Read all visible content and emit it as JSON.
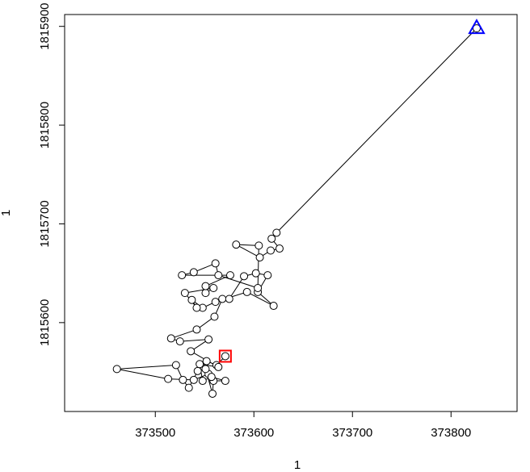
{
  "chart_data": {
    "type": "line",
    "xlabel": "1",
    "ylabel": "1",
    "x": [
      373571,
      373562,
      373552,
      373554,
      373539,
      373513,
      373461,
      373521,
      373528,
      373534,
      373543,
      373551,
      373558,
      373559,
      373571,
      373557,
      373548,
      373545,
      373564,
      373536,
      373554,
      373525,
      373516,
      373542,
      373560,
      373568,
      373575,
      373590,
      373602,
      373614,
      373604,
      373620,
      373593,
      373561,
      373548,
      373537,
      373542,
      373530,
      373559,
      373551,
      373551,
      373576,
      373527,
      373539,
      373561,
      373564,
      373604,
      373605,
      373582,
      373606,
      373617,
      373626,
      373618,
      373623,
      373826
    ],
    "values": [
      1815566,
      1815557,
      1815561,
      1815548,
      1815542,
      1815543,
      1815553,
      1815557,
      1815542,
      1815534,
      1815551,
      1815553,
      1815528,
      1815541,
      1815541,
      1815545,
      1815541,
      1815558,
      1815555,
      1815571,
      1815583,
      1815581,
      1815584,
      1815593,
      1815606,
      1815624,
      1815624,
      1815647,
      1815650,
      1815648,
      1815631,
      1815617,
      1815631,
      1815621,
      1815615,
      1815623,
      1815615,
      1815630,
      1815635,
      1815630,
      1815637,
      1815648,
      1815648,
      1815651,
      1815660,
      1815648,
      1815635,
      1815678,
      1815679,
      1815666,
      1815673,
      1815675,
      1815685,
      1815691,
      1815898
    ],
    "line_color": "#000000",
    "start_color": "#ff0000",
    "end_color": "#0000ff",
    "xlim": [
      373408,
      373867
    ],
    "ylim": [
      1815510,
      1815912
    ],
    "xticks": [
      373500,
      373600,
      373700,
      373800
    ],
    "yticks": [
      1815600,
      1815700,
      1815800,
      1815900
    ]
  }
}
